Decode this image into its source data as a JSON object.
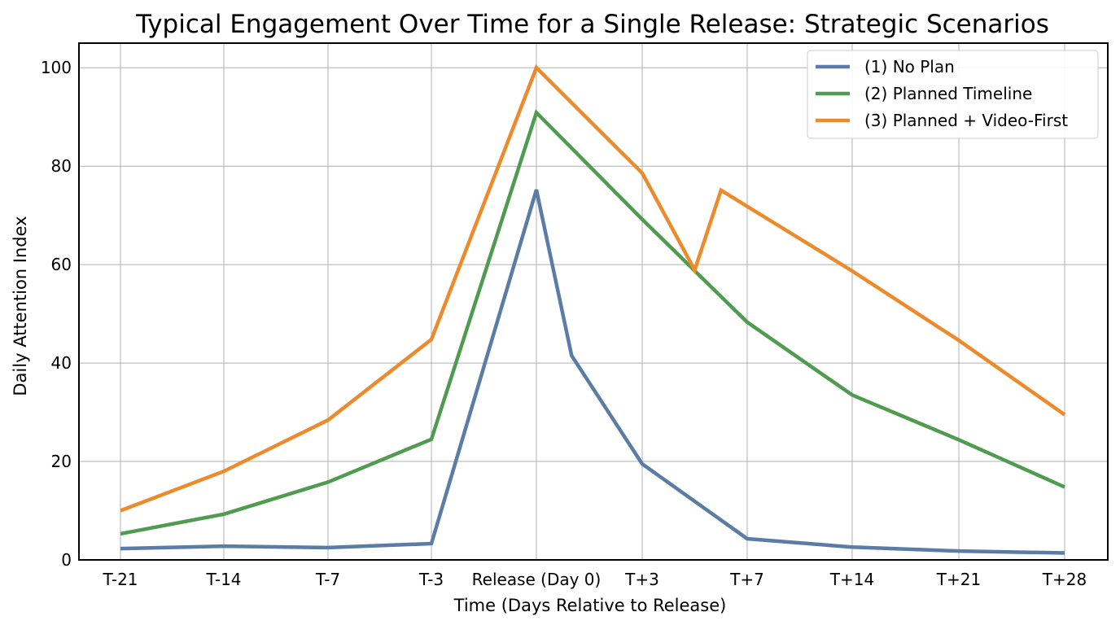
{
  "chart_data": {
    "type": "line",
    "title": "Typical Engagement Over Time for a Single Release: Strategic Scenarios",
    "xlabel": "Time (Days Relative to Release)",
    "ylabel": "Daily Attention Index",
    "x": [
      -21,
      -14,
      -7,
      -3,
      0,
      1,
      3,
      5,
      7,
      14,
      21,
      28
    ],
    "xticks": [
      {
        "value": -21,
        "label": "T-21"
      },
      {
        "value": -14,
        "label": "T-14"
      },
      {
        "value": -7,
        "label": "T-7"
      },
      {
        "value": -3,
        "label": "T-3"
      },
      {
        "value": 0,
        "label": "Release (Day 0)"
      },
      {
        "value": 3,
        "label": "T+3"
      },
      {
        "value": 7,
        "label": "T+7"
      },
      {
        "value": 14,
        "label": "T+14"
      },
      {
        "value": 21,
        "label": "T+21"
      },
      {
        "value": 28,
        "label": "T+28"
      }
    ],
    "yticks": [
      0,
      20,
      40,
      60,
      80,
      100
    ],
    "ylim": [
      0,
      105
    ],
    "grid": true,
    "legend_position": "top-right",
    "series": [
      {
        "name": "(1) No Plan",
        "color": "#5a7ca6",
        "points": [
          [
            -21,
            2.3
          ],
          [
            -14,
            2.8
          ],
          [
            -7,
            2.5
          ],
          [
            -3,
            3.3
          ],
          [
            0,
            75.2
          ],
          [
            1,
            41.5
          ],
          [
            3,
            19.5
          ],
          [
            7,
            4.3
          ],
          [
            14,
            2.6
          ],
          [
            21,
            1.8
          ],
          [
            28,
            1.4
          ]
        ]
      },
      {
        "name": "(2) Planned Timeline",
        "color": "#4f9b4f",
        "points": [
          [
            -21,
            5.3
          ],
          [
            -14,
            9.3
          ],
          [
            -7,
            15.8
          ],
          [
            -3,
            24.5
          ],
          [
            0,
            90.9
          ],
          [
            3,
            69.2
          ],
          [
            7,
            48.3
          ],
          [
            14,
            33.5
          ],
          [
            21,
            24.4
          ],
          [
            28,
            14.8
          ]
        ]
      },
      {
        "name": "(3) Planned + Video-First",
        "color": "#ed8a2c",
        "points": [
          [
            -21,
            10
          ],
          [
            -14,
            18
          ],
          [
            -7,
            28.4
          ],
          [
            -3,
            44.8
          ],
          [
            0,
            100
          ],
          [
            3,
            78.6
          ],
          [
            5,
            58.9
          ],
          [
            6,
            75.1
          ],
          [
            14,
            58.7
          ],
          [
            21,
            44.6
          ],
          [
            28,
            29.5
          ]
        ]
      }
    ]
  }
}
